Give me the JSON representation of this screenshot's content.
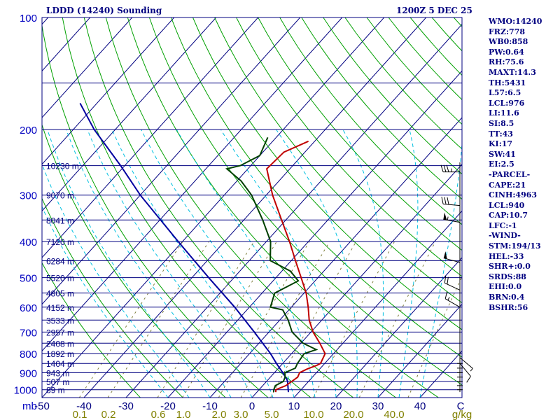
{
  "header": {
    "station": "LDDD (14240) Sounding",
    "time": "1200Z  5 DEC 25"
  },
  "colors": {
    "frame": "#000080",
    "isobar": "#000080",
    "isotherm": "#000080",
    "dry_adiabat": "#00a000",
    "moist_adiabat": "#00c0e0",
    "mixing_ratio": "#808040",
    "temperature": "#c00000",
    "dewpoint": "#004000",
    "parcel": "#0000a0",
    "wind": "#000000",
    "pressure_label": "#0000c0",
    "axis_label": "#000080",
    "mixing_label": "#808000"
  },
  "chart_data": {
    "type": "skew-t",
    "title": "LDDD (14240) Sounding",
    "valid_time": "1200Z  5 DEC 25",
    "pressure_axis": {
      "unit": "mb",
      "range": [
        1050,
        100
      ],
      "labels": [
        100,
        200,
        300,
        400,
        500,
        600,
        700,
        800,
        900,
        1000
      ]
    },
    "temperature_axis": {
      "unit": "C",
      "range": [
        -50,
        50
      ],
      "labels": [
        -50,
        -40,
        -30,
        -20,
        -10,
        0,
        10,
        20,
        30,
        40
      ]
    },
    "mixing_ratio_axis": {
      "unit": "g/kg",
      "labels": [
        "0.1",
        "0.2",
        "0.6",
        "1.0",
        "2.0",
        "3.0",
        "5.0",
        "10.0",
        "20.0",
        "40.0"
      ]
    },
    "height_labels": [
      {
        "p": 250,
        "text": "10230 m"
      },
      {
        "p": 300,
        "text": "9070 m"
      },
      {
        "p": 350,
        "text": "8041 m"
      },
      {
        "p": 400,
        "text": "7120 m"
      },
      {
        "p": 450,
        "text": "6284 m"
      },
      {
        "p": 500,
        "text": "5520 m"
      },
      {
        "p": 550,
        "text": "4805 m"
      },
      {
        "p": 600,
        "text": "4152 m"
      },
      {
        "p": 650,
        "text": "3533 m"
      },
      {
        "p": 700,
        "text": "2957 m"
      },
      {
        "p": 750,
        "text": "2408 m"
      },
      {
        "p": 800,
        "text": "1892 m"
      },
      {
        "p": 850,
        "text": "1404 m"
      },
      {
        "p": 900,
        "text": "943 m"
      },
      {
        "p": 950,
        "text": "507 m"
      },
      {
        "p": 1000,
        "text": "89 m"
      }
    ],
    "temperature": [
      {
        "p": 1015,
        "t": 4.5
      },
      {
        "p": 1000,
        "t": 4.0
      },
      {
        "p": 975,
        "t": 5.5
      },
      {
        "p": 950,
        "t": 6.0
      },
      {
        "p": 925,
        "t": 6.5
      },
      {
        "p": 900,
        "t": 6.0
      },
      {
        "p": 880,
        "t": 7.0
      },
      {
        "p": 860,
        "t": 8.5
      },
      {
        "p": 850,
        "t": 9.0
      },
      {
        "p": 800,
        "t": 8.0
      },
      {
        "p": 750,
        "t": 4.5
      },
      {
        "p": 700,
        "t": 0.5
      },
      {
        "p": 650,
        "t": -3.0
      },
      {
        "p": 600,
        "t": -6.0
      },
      {
        "p": 550,
        "t": -9.5
      },
      {
        "p": 500,
        "t": -14.0
      },
      {
        "p": 450,
        "t": -19.0
      },
      {
        "p": 400,
        "t": -24.5
      },
      {
        "p": 350,
        "t": -31.0
      },
      {
        "p": 300,
        "t": -38.5
      },
      {
        "p": 255,
        "t": -45.5
      },
      {
        "p": 230,
        "t": -45.0
      },
      {
        "p": 215,
        "t": -41.5
      }
    ],
    "dewpoint": [
      {
        "p": 1015,
        "t": 4.0
      },
      {
        "p": 1000,
        "t": 3.5
      },
      {
        "p": 975,
        "t": 3.0
      },
      {
        "p": 950,
        "t": 4.0
      },
      {
        "p": 925,
        "t": 3.5
      },
      {
        "p": 900,
        "t": 2.5
      },
      {
        "p": 875,
        "t": 4.0
      },
      {
        "p": 850,
        "t": 3.5
      },
      {
        "p": 800,
        "t": 3.0
      },
      {
        "p": 780,
        "t": 5.0
      },
      {
        "p": 750,
        "t": 0.5
      },
      {
        "p": 700,
        "t": -4.5
      },
      {
        "p": 650,
        "t": -8.0
      },
      {
        "p": 610,
        "t": -11.5
      },
      {
        "p": 600,
        "t": -15.0
      },
      {
        "p": 550,
        "t": -17.0
      },
      {
        "p": 510,
        "t": -14.0
      },
      {
        "p": 480,
        "t": -18.0
      },
      {
        "p": 450,
        "t": -25.0
      },
      {
        "p": 400,
        "t": -29.0
      },
      {
        "p": 350,
        "t": -35.5
      },
      {
        "p": 300,
        "t": -43.5
      },
      {
        "p": 275,
        "t": -49.0
      },
      {
        "p": 255,
        "t": -55.0
      },
      {
        "p": 250,
        "t": -52.5
      },
      {
        "p": 235,
        "t": -50.0
      },
      {
        "p": 210,
        "t": -52.0
      }
    ],
    "parcel": [
      {
        "p": 1015,
        "t": 7.5
      },
      {
        "p": 950,
        "t": 5.0
      },
      {
        "p": 940,
        "t": 4.5
      },
      {
        "p": 900,
        "t": 2.0
      },
      {
        "p": 850,
        "t": -1.5
      },
      {
        "p": 800,
        "t": -5.0
      },
      {
        "p": 700,
        "t": -13.5
      },
      {
        "p": 600,
        "t": -23.5
      },
      {
        "p": 500,
        "t": -36.0
      },
      {
        "p": 400,
        "t": -51.0
      },
      {
        "p": 300,
        "t": -70.0
      },
      {
        "p": 250,
        "t": -81.0
      },
      {
        "p": 200,
        "t": -95.0
      },
      {
        "p": 170,
        "t": -104.0
      }
    ],
    "wind_barbs": [
      {
        "p": 260,
        "dir": 270,
        "kt": 35
      },
      {
        "p": 320,
        "dir": 275,
        "kt": 30
      },
      {
        "p": 355,
        "dir": 280,
        "kt": 55
      },
      {
        "p": 455,
        "dir": 285,
        "kt": 50
      },
      {
        "p": 540,
        "dir": 295,
        "kt": 20
      },
      {
        "p": 600,
        "dir": 300,
        "kt": 15
      },
      {
        "p": 820,
        "dir": 130,
        "kt": 5
      },
      {
        "p": 850,
        "dir": 140,
        "kt": 10
      }
    ],
    "indices": [
      "WMO:14240",
      "FRZ:778",
      "WB0:858",
      "PW:0.64",
      "RH:75.6",
      "MAXT:14.3",
      "TH:5431",
      "L57:6.5",
      "LCL:976",
      "LI:11.6",
      "SI:8.5",
      "TT:43",
      "KI:17",
      "SW:41",
      "EI:2.5",
      "-PARCEL-",
      "CAPE:21",
      "CINH:4963",
      "LCL:940",
      "CAP:10.7",
      "LFC:-1",
      "-WIND-",
      "STM:194/13",
      "HEL:-33",
      "SHR+:0.0",
      "SRDS:88",
      "EHI:0.0",
      "BRN:0.4",
      "BSHR:56"
    ]
  }
}
